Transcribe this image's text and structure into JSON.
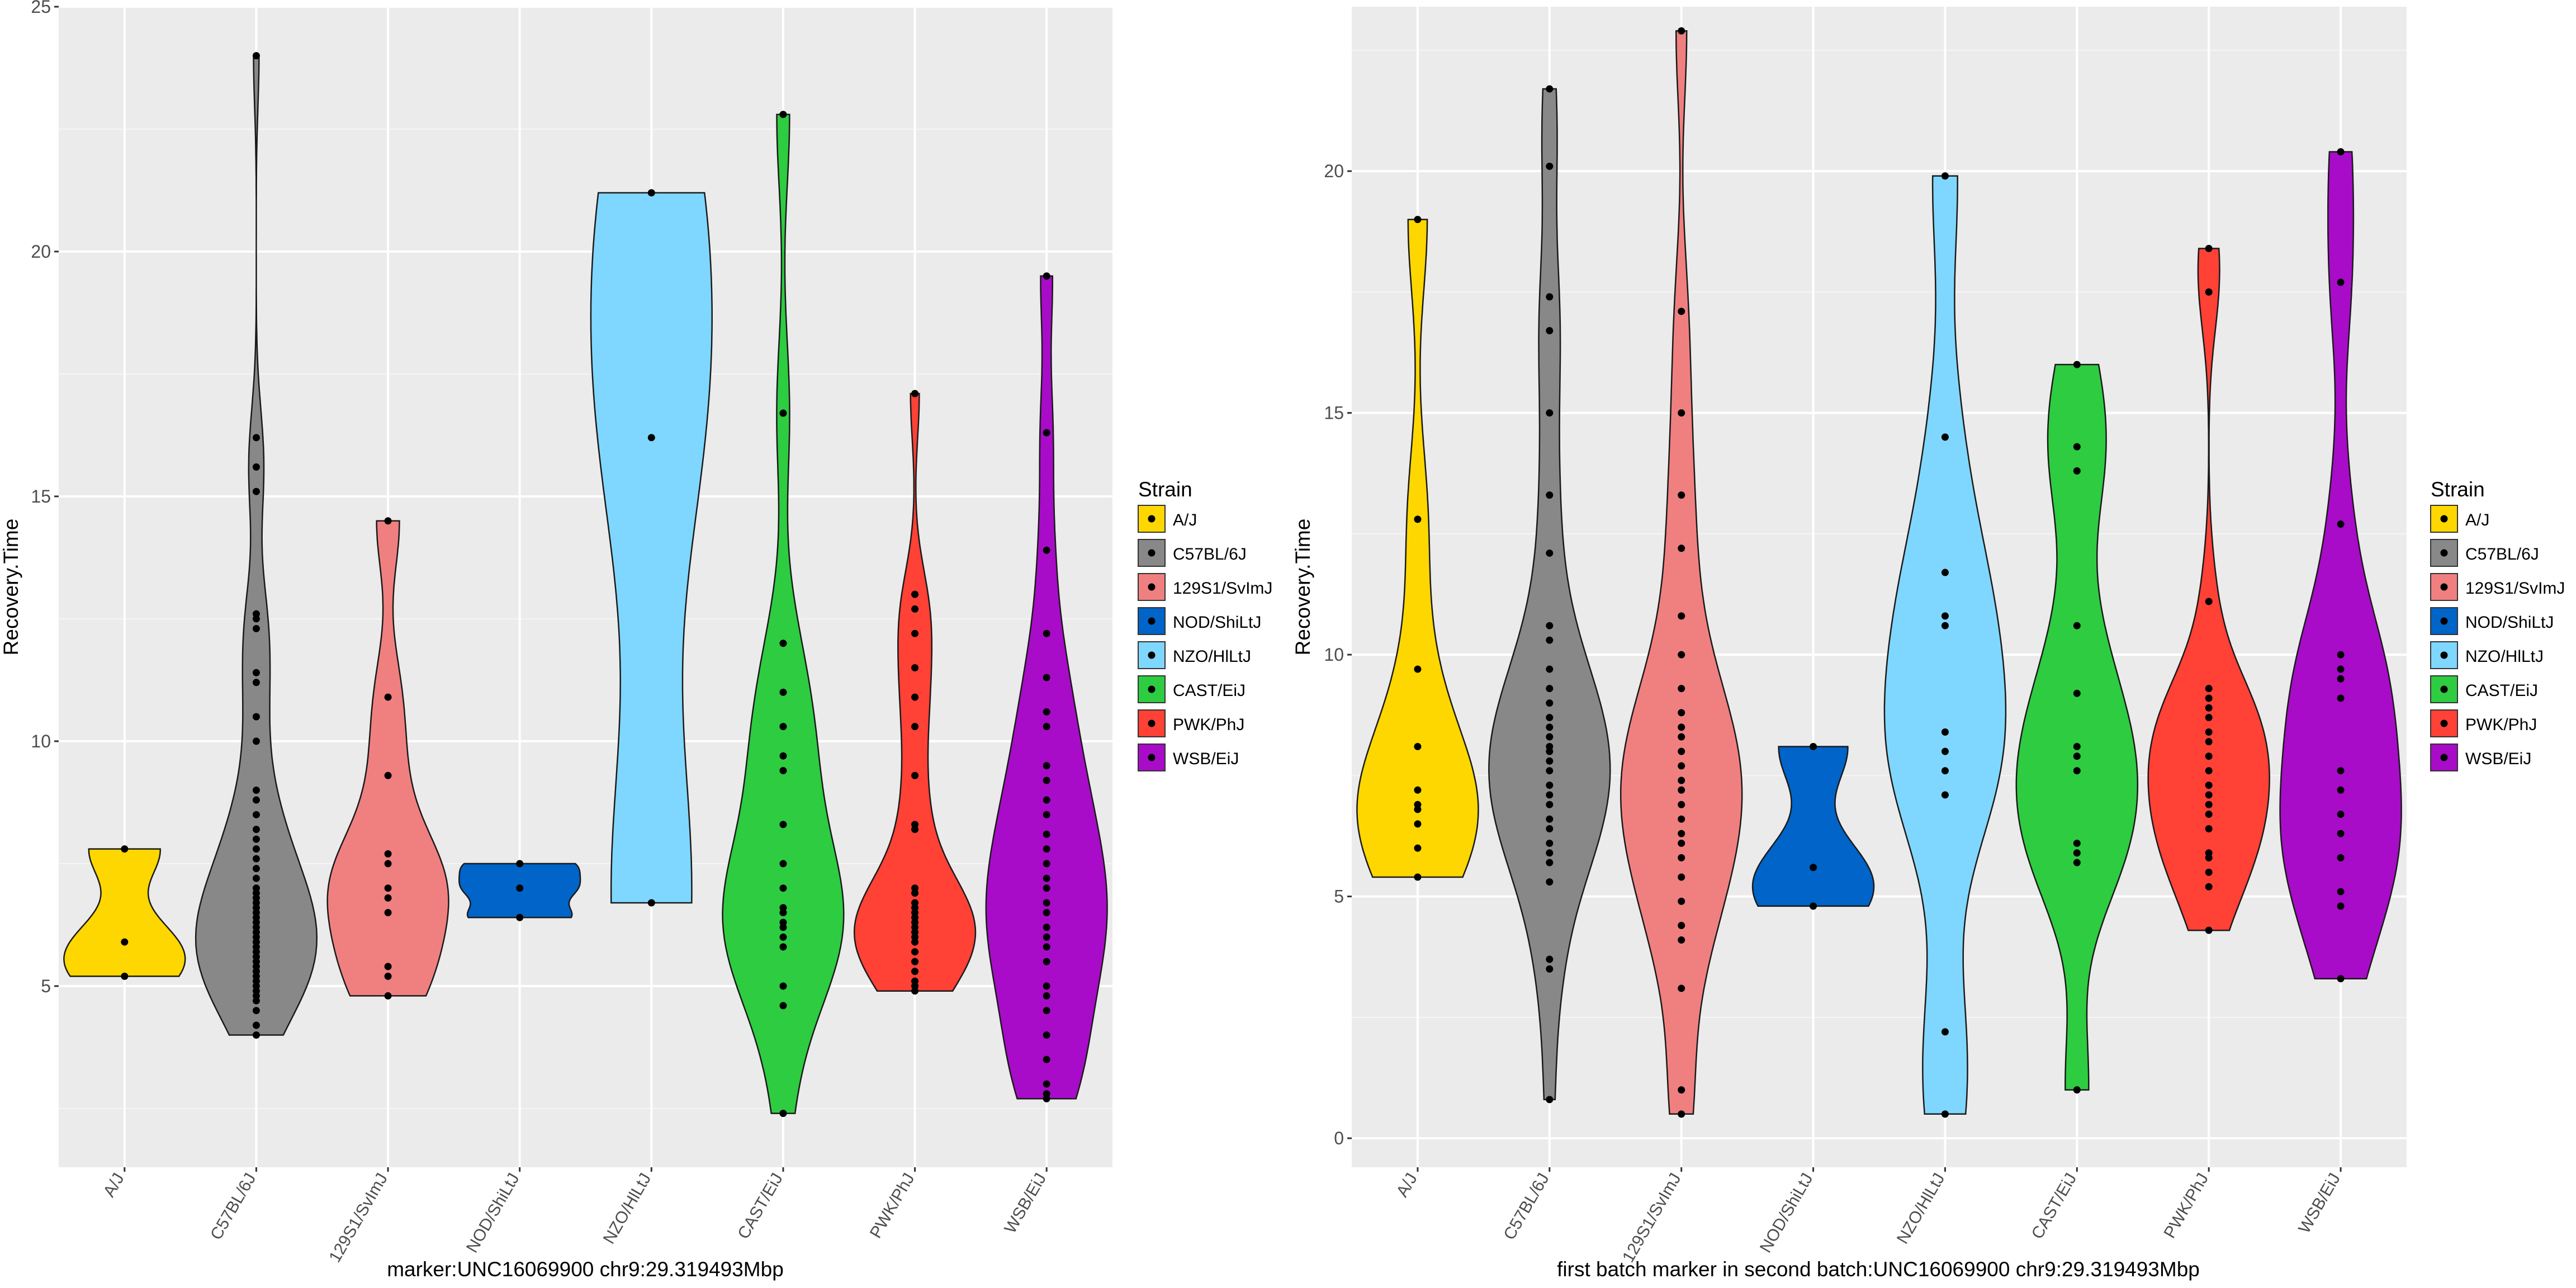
{
  "legend": {
    "title": "Strain",
    "entries": [
      {
        "label": "A/J",
        "color": "#FFD700"
      },
      {
        "label": "C57BL/6J",
        "color": "#888888"
      },
      {
        "label": "129S1/SvImJ",
        "color": "#F08080"
      },
      {
        "label": "NOD/ShiLtJ",
        "color": "#0064C8"
      },
      {
        "label": "NZO/HlLtJ",
        "color": "#7FD7FF"
      },
      {
        "label": "CAST/EiJ",
        "color": "#2ECC40"
      },
      {
        "label": "PWK/PhJ",
        "color": "#FF4136"
      },
      {
        "label": "WSB/EiJ",
        "color": "#A80CC8"
      }
    ]
  },
  "chart_data": [
    {
      "type": "violin",
      "xlabel": "marker:UNC16069900 chr9:29.319493Mbp",
      "ylabel": "Recovery.Time",
      "ylim": [
        1.3,
        25
      ],
      "yticks": [
        5,
        10,
        15,
        20,
        25
      ],
      "categories": [
        "A/J",
        "C57BL/6J",
        "129S1/SvImJ",
        "NOD/ShiLtJ",
        "NZO/HlLtJ",
        "CAST/EiJ",
        "PWK/PhJ",
        "WSB/EiJ"
      ],
      "tick_labels": [
        "A/J",
        "C57BL/6J",
        "129S1/SvImJ",
        "NOD/ShiLtJ",
        "NZO/HlLtJ",
        "CAST/EiJ",
        "PWK/PhJ",
        "WSB/EiJ"
      ],
      "legend_position": "right",
      "grid": true,
      "series": [
        {
          "name": "A/J",
          "points": [
            5.2,
            5.9,
            7.8
          ]
        },
        {
          "name": "C57BL/6J",
          "points": [
            4.0,
            4.2,
            4.5,
            4.7,
            4.8,
            4.9,
            5.0,
            5.1,
            5.2,
            5.3,
            5.4,
            5.5,
            5.6,
            5.7,
            5.8,
            5.9,
            6.0,
            6.1,
            6.2,
            6.3,
            6.4,
            6.5,
            6.6,
            6.7,
            6.8,
            6.9,
            7.0,
            7.2,
            7.4,
            7.6,
            7.8,
            8.0,
            8.2,
            8.5,
            8.8,
            9.0,
            10.0,
            10.5,
            11.2,
            11.4,
            12.3,
            12.5,
            12.6,
            15.1,
            15.6,
            16.2,
            24.0
          ]
        },
        {
          "name": "129S1/SvImJ",
          "points": [
            4.8,
            5.2,
            5.4,
            6.5,
            6.8,
            7.0,
            7.5,
            7.7,
            9.3,
            10.9,
            14.5
          ]
        },
        {
          "name": "NOD/ShiLtJ",
          "points": [
            6.4,
            7.0,
            7.5
          ]
        },
        {
          "name": "NZO/HlLtJ",
          "points": [
            6.7,
            16.2,
            21.2
          ]
        },
        {
          "name": "CAST/EiJ",
          "points": [
            2.4,
            4.6,
            5.0,
            5.8,
            6.0,
            6.2,
            6.3,
            6.5,
            6.6,
            7.0,
            7.5,
            8.3,
            9.4,
            9.7,
            10.3,
            11.0,
            12.0,
            16.7,
            22.8
          ]
        },
        {
          "name": "PWK/PhJ",
          "points": [
            4.9,
            5.0,
            5.1,
            5.3,
            5.5,
            5.7,
            5.9,
            6.0,
            6.1,
            6.2,
            6.3,
            6.4,
            6.5,
            6.6,
            6.7,
            6.9,
            7.0,
            8.2,
            8.3,
            9.3,
            10.3,
            10.9,
            11.5,
            12.2,
            12.7,
            13.0,
            17.1
          ]
        },
        {
          "name": "WSB/EiJ",
          "points": [
            2.7,
            2.8,
            3.0,
            3.5,
            4.0,
            4.5,
            4.8,
            5.0,
            5.5,
            5.8,
            6.0,
            6.2,
            6.5,
            6.7,
            7.0,
            7.2,
            7.5,
            7.8,
            8.1,
            8.5,
            8.8,
            9.2,
            9.5,
            10.3,
            10.6,
            11.3,
            12.2,
            13.9,
            16.3,
            19.5
          ]
        }
      ]
    },
    {
      "type": "violin",
      "xlabel": "first batch marker in second batch:UNC16069900 chr9:29.319493Mbp",
      "ylabel": "Recovery.Time",
      "ylim": [
        -0.6,
        23.4
      ],
      "yticks": [
        0,
        5,
        10,
        15,
        20
      ],
      "categories": [
        "A/J",
        "C57BL/6J",
        "129S1/SvImJ",
        "NOD/ShiLtJ",
        "NZO/HlLtJ",
        "CAST/EiJ",
        "PWK/PhJ",
        "WSB/EiJ"
      ],
      "tick_labels": [
        "A/J",
        "C57BL/6J",
        "129S1/SvImJ",
        "NOD/ShiLtJ",
        "NZO/HlLtJ",
        "CAST/EiJ",
        "PWK/PhJ",
        "WSB/EiJ"
      ],
      "legend_position": "right",
      "grid": true,
      "series": [
        {
          "name": "A/J",
          "points": [
            5.4,
            6.0,
            6.5,
            6.8,
            6.9,
            7.2,
            8.1,
            9.7,
            12.8,
            19.0
          ]
        },
        {
          "name": "C57BL/6J",
          "points": [
            0.8,
            3.5,
            3.7,
            5.3,
            5.7,
            5.9,
            6.1,
            6.4,
            6.6,
            6.9,
            7.1,
            7.3,
            7.6,
            7.8,
            8.0,
            8.1,
            8.3,
            8.5,
            8.7,
            9.0,
            9.3,
            9.7,
            10.3,
            10.6,
            12.1,
            13.3,
            15.0,
            16.7,
            17.4,
            20.1,
            21.7
          ]
        },
        {
          "name": "129S1/SvImJ",
          "points": [
            0.5,
            1.0,
            3.1,
            4.1,
            4.4,
            4.9,
            5.4,
            5.8,
            6.1,
            6.3,
            6.6,
            6.9,
            7.2,
            7.4,
            7.7,
            8.0,
            8.3,
            8.5,
            8.8,
            9.3,
            10.0,
            10.8,
            12.2,
            13.3,
            15.0,
            17.1,
            22.9
          ]
        },
        {
          "name": "NOD/ShiLtJ",
          "points": [
            4.8,
            5.6,
            8.1
          ]
        },
        {
          "name": "NZO/HlLtJ",
          "points": [
            0.5,
            2.2,
            7.1,
            7.6,
            8.0,
            8.4,
            10.6,
            10.8,
            11.7,
            14.5,
            19.9
          ]
        },
        {
          "name": "CAST/EiJ",
          "points": [
            1.0,
            5.7,
            5.9,
            6.1,
            7.6,
            7.9,
            8.1,
            9.2,
            10.6,
            13.8,
            14.3,
            16.0
          ]
        },
        {
          "name": "PWK/PhJ",
          "points": [
            4.3,
            5.2,
            5.5,
            5.8,
            5.9,
            6.4,
            6.7,
            6.9,
            7.1,
            7.3,
            7.6,
            7.9,
            8.2,
            8.4,
            8.7,
            8.9,
            9.1,
            9.3,
            11.1,
            17.5,
            18.4
          ]
        },
        {
          "name": "WSB/EiJ",
          "points": [
            3.3,
            4.8,
            5.1,
            5.8,
            6.3,
            6.7,
            7.2,
            7.6,
            9.1,
            9.5,
            9.7,
            10.0,
            12.7,
            17.7,
            20.4
          ]
        }
      ]
    }
  ]
}
